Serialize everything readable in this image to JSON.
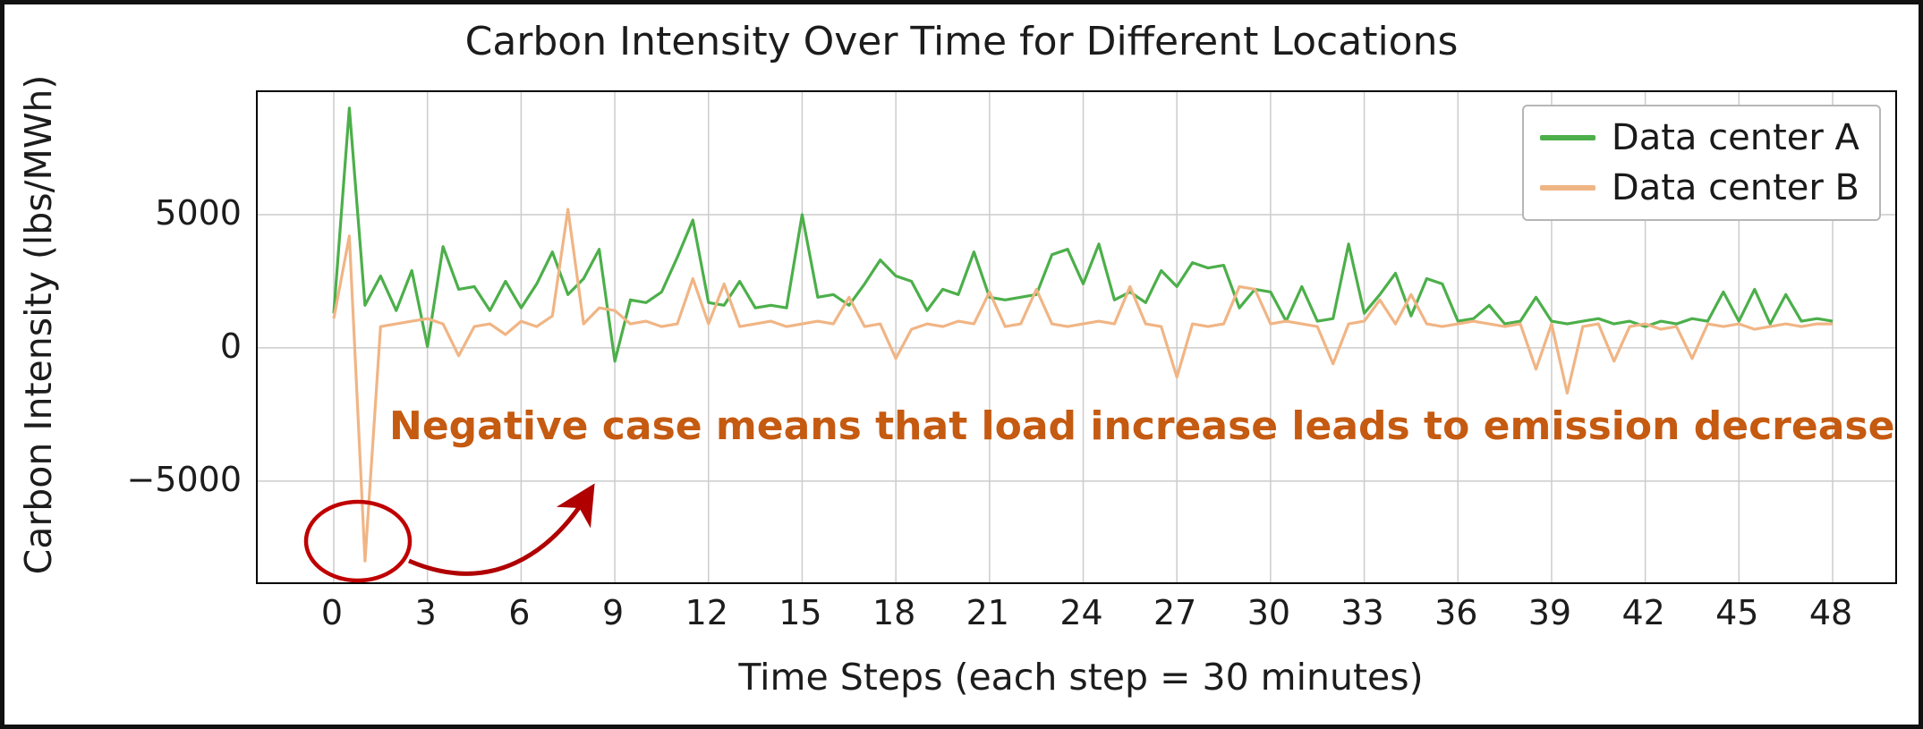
{
  "chart_data": {
    "type": "line",
    "title": "Carbon Intensity Over Time for Different Locations",
    "xlabel": "Time Steps (each step = 30 minutes)",
    "ylabel": "Carbon Intensity (lbs/MWh)",
    "x": {
      "start": 0,
      "step": 0.5,
      "count": 97
    },
    "xlim": [
      -1,
      49.5
    ],
    "ylim": [
      -8800,
      9600
    ],
    "grid": true,
    "legend_position": "upper right",
    "xticks": [
      0,
      3,
      6,
      9,
      12,
      15,
      18,
      21,
      24,
      27,
      30,
      33,
      36,
      39,
      42,
      45,
      48
    ],
    "yticks": {
      "values": [
        5000,
        0,
        -5000
      ],
      "labels": [
        "5000",
        "0",
        "−5000"
      ]
    },
    "series": [
      {
        "name": "Data center A",
        "color": "#4caf4a",
        "values": [
          1300,
          9000,
          1600,
          2700,
          1400,
          2900,
          50,
          3800,
          2200,
          2300,
          1400,
          2500,
          1500,
          2400,
          3600,
          2000,
          2600,
          3700,
          -500,
          1800,
          1700,
          2100,
          3400,
          4800,
          1700,
          1600,
          2500,
          1500,
          1600,
          1500,
          5000,
          1900,
          2000,
          1600,
          2400,
          3300,
          2700,
          2500,
          1400,
          2200,
          2000,
          3600,
          1900,
          1800,
          1900,
          2000,
          3500,
          3700,
          2400,
          3900,
          1800,
          2100,
          1700,
          2900,
          2300,
          3200,
          3000,
          3100,
          1500,
          2200,
          2100,
          1000,
          2300,
          1000,
          1100,
          3900,
          1300,
          2000,
          2800,
          1200,
          2600,
          2400,
          1000,
          1100,
          1600,
          900,
          1000,
          1900,
          1000,
          900,
          1000,
          1100,
          900,
          1000,
          800,
          1000,
          900,
          1100,
          1000,
          2100,
          1000,
          2200,
          900,
          2000,
          1000,
          1100,
          1000
        ]
      },
      {
        "name": "Data center B",
        "color": "#f0b585",
        "values": [
          1100,
          4200,
          -8000,
          800,
          900,
          1000,
          1100,
          900,
          -300,
          800,
          900,
          500,
          1000,
          800,
          1200,
          5200,
          900,
          1500,
          1400,
          900,
          1000,
          800,
          900,
          2600,
          900,
          2400,
          800,
          900,
          1000,
          800,
          900,
          1000,
          900,
          1900,
          800,
          900,
          -400,
          700,
          900,
          800,
          1000,
          900,
          2100,
          800,
          900,
          2200,
          900,
          800,
          900,
          1000,
          900,
          2300,
          900,
          800,
          -1100,
          900,
          800,
          900,
          2300,
          2200,
          900,
          1000,
          900,
          800,
          -600,
          900,
          1000,
          1800,
          900,
          2000,
          900,
          800,
          900,
          1000,
          900,
          800,
          900,
          -800,
          900,
          -1700,
          800,
          900,
          -500,
          800,
          900,
          700,
          800,
          -400,
          900,
          800,
          900,
          700,
          800,
          900,
          800,
          900,
          900
        ]
      }
    ],
    "annotation": {
      "text": "Negative case means that load increase leads to emission decrease",
      "color": "#c55a11"
    },
    "markers": {
      "circle_color": "#c00000",
      "arrow_color": "#b00000",
      "circled_point": {
        "x": 1.0,
        "y": -8000,
        "meaning": "negative spike of Data center B"
      }
    }
  }
}
